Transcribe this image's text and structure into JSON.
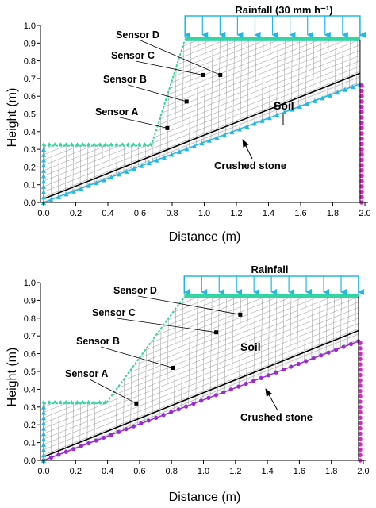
{
  "figure": {
    "panels": [
      {
        "id": "top",
        "xlabel": "Distance (m)",
        "ylabel": "Height (m)",
        "x_ticks": [
          "0.0",
          "0.2",
          "0.4",
          "0.6",
          "0.8",
          "1.0",
          "1.2",
          "1.4",
          "1.6",
          "1.8",
          "2.0"
        ],
        "y_ticks": [
          "0.0",
          "0.1",
          "0.2",
          "0.3",
          "0.4",
          "0.5",
          "0.6",
          "0.7",
          "0.8",
          "0.9",
          "1.0"
        ],
        "rainfall_label": "Rainfall (30 mm h⁻¹)",
        "soil_label": "Soil",
        "stone_label": "Crushed stone",
        "geometry_m": {
          "crest_x_start": 0.88,
          "crest_height": 0.92,
          "right_x": 1.97,
          "toe_bench_end_x": 0.67,
          "toe_height": 0.32,
          "soil_base_at_x0": 0.02,
          "soil_base_at_right": 0.73,
          "stone_base_at_right": 0.67
        },
        "sensors": [
          {
            "name": "Sensor A",
            "x": 0.77,
            "y": 0.42
          },
          {
            "name": "Sensor B",
            "x": 0.89,
            "y": 0.57
          },
          {
            "name": "Sensor C",
            "x": 0.99,
            "y": 0.72
          },
          {
            "name": "Sensor D",
            "x": 1.1,
            "y": 0.72
          }
        ]
      },
      {
        "id": "bottom",
        "xlabel": "Distance (m)",
        "ylabel": "Height (m)",
        "x_ticks": [
          "0.0",
          "0.2",
          "0.4",
          "0.6",
          "0.8",
          "1.0",
          "1.2",
          "1.4",
          "1.6",
          "1.8",
          "2.0"
        ],
        "y_ticks": [
          "0.0",
          "0.1",
          "0.2",
          "0.3",
          "0.4",
          "0.5",
          "0.6",
          "0.7",
          "0.8",
          "0.9",
          "1.0"
        ],
        "rainfall_label": "Rainfall",
        "soil_label": "Soil",
        "stone_label": "Crushed stone",
        "geometry_m": {
          "crest_x_start": 0.88,
          "crest_height": 0.92,
          "right_x": 1.97,
          "toe_bench_end_x": 0.39,
          "toe_height": 0.32,
          "soil_base_at_x0": 0.02,
          "soil_base_at_right": 0.73,
          "stone_base_at_right": 0.67
        },
        "sensors": [
          {
            "name": "Sensor A",
            "x": 0.58,
            "y": 0.32
          },
          {
            "name": "Sensor B",
            "x": 0.81,
            "y": 0.52
          },
          {
            "name": "Sensor C",
            "x": 1.08,
            "y": 0.72
          },
          {
            "name": "Sensor D",
            "x": 1.23,
            "y": 0.82
          }
        ]
      }
    ],
    "colors": {
      "boundary_cyan": "#22b8e6",
      "crest_green": "#33d6a0",
      "toe_green": "#33d6a0",
      "right_edge_magenta": "#e020d0",
      "stone_purple_dots": "#9b2ad6",
      "mesh": "#8a8a8a",
      "soil_base_line": "#000000"
    }
  }
}
